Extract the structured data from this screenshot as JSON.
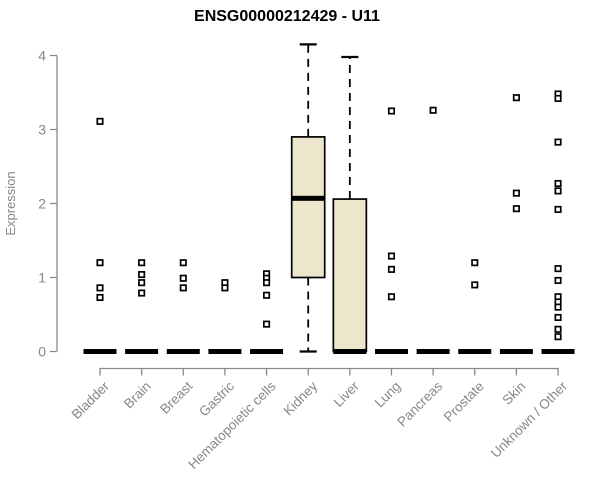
{
  "chart_data": {
    "type": "boxplot",
    "title": "ENSG00000212429 - U11",
    "ylabel": "Expression",
    "xlabel": "",
    "ylim": [
      0,
      4
    ],
    "yticks": [
      "0",
      "1",
      "2",
      "3",
      "4"
    ],
    "grid": false,
    "legend": false,
    "categories": [
      "Bladder",
      "Brain",
      "Breast",
      "Gastric",
      "Hematopoietic cells",
      "Kidney",
      "Liver",
      "Lung",
      "Pancreas",
      "Prostate",
      "Skin",
      "Unknown / Other"
    ],
    "boxes": [
      {
        "category": "Bladder",
        "q1": 0,
        "median": 0,
        "q3": 0,
        "whisker_low": 0,
        "whisker_high": 0,
        "outliers": [
          3.11,
          1.2,
          0.86,
          0.73
        ]
      },
      {
        "category": "Brain",
        "q1": 0,
        "median": 0,
        "q3": 0,
        "whisker_low": 0,
        "whisker_high": 0,
        "outliers": [
          1.2,
          1.04,
          0.93,
          0.79
        ]
      },
      {
        "category": "Breast",
        "q1": 0,
        "median": 0,
        "q3": 0,
        "whisker_low": 0,
        "whisker_high": 0,
        "outliers": [
          1.2,
          0.99,
          0.86
        ]
      },
      {
        "category": "Gastric",
        "q1": 0,
        "median": 0,
        "q3": 0,
        "whisker_low": 0,
        "whisker_high": 0,
        "outliers": [
          0.93,
          0.86
        ]
      },
      {
        "category": "Hematopoietic cells",
        "q1": 0,
        "median": 0,
        "q3": 0,
        "whisker_low": 0,
        "whisker_high": 0,
        "outliers": [
          1.05,
          0.99,
          0.93,
          0.76,
          0.37
        ]
      },
      {
        "category": "Kidney",
        "q1": 1.0,
        "median": 2.07,
        "q3": 2.9,
        "whisker_low": 0,
        "whisker_high": 4.15,
        "outliers": []
      },
      {
        "category": "Liver",
        "q1": 0,
        "median": 0,
        "q3": 2.06,
        "whisker_low": 0,
        "whisker_high": 3.98,
        "outliers": []
      },
      {
        "category": "Lung",
        "q1": 0,
        "median": 0,
        "q3": 0,
        "whisker_low": 0,
        "whisker_high": 0,
        "outliers": [
          3.25,
          1.29,
          1.11,
          0.74
        ]
      },
      {
        "category": "Pancreas",
        "q1": 0,
        "median": 0,
        "q3": 0,
        "whisker_low": 0,
        "whisker_high": 0,
        "outliers": [
          3.26
        ]
      },
      {
        "category": "Prostate",
        "q1": 0,
        "median": 0,
        "q3": 0,
        "whisker_low": 0,
        "whisker_high": 0,
        "outliers": [
          1.2,
          0.9
        ]
      },
      {
        "category": "Skin",
        "q1": 0,
        "median": 0,
        "q3": 0,
        "whisker_low": 0,
        "whisker_high": 0,
        "outliers": [
          3.43,
          2.14,
          1.93
        ]
      },
      {
        "category": "Unknown / Other",
        "q1": 0,
        "median": 0,
        "q3": 0,
        "whisker_low": 0,
        "whisker_high": 0,
        "outliers": [
          3.48,
          3.42,
          2.83,
          2.27,
          2.17,
          1.92,
          1.12,
          0.96,
          0.74,
          0.67,
          0.6,
          0.46,
          0.3,
          0.2
        ]
      }
    ],
    "colors": {
      "box_fill": "#ECE7CC",
      "box_stroke": "#000000",
      "median": "#000000",
      "whisker": "#000000",
      "outlier_stroke": "#000000",
      "outlier_fill": "#FFFFFF",
      "axis": "#8A8A8A",
      "tick_text": "#878787",
      "title_text": "#000000",
      "background": "#FFFFFF"
    }
  }
}
